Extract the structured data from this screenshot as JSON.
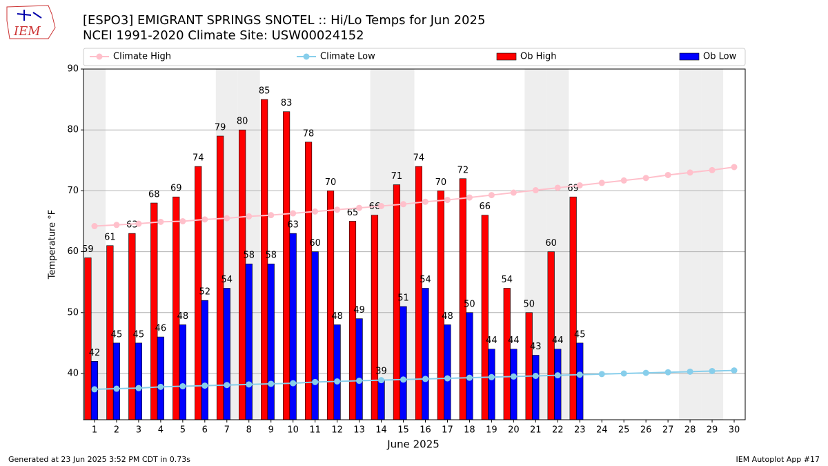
{
  "header": {
    "logo_text": "IEM"
  },
  "chart_data": {
    "type": "bar",
    "title": "[ESPO3] EMIGRANT SPRINGS SNOTEL :: Hi/Lo Temps for Jun 2025",
    "subtitle": "NCEI 1991-2020 Climate Site: USW00024152",
    "x_label": "June 2025",
    "y_label": "Temperature °F",
    "x": [
      1,
      2,
      3,
      4,
      5,
      6,
      7,
      8,
      9,
      10,
      11,
      12,
      13,
      14,
      15,
      16,
      17,
      18,
      19,
      20,
      21,
      22,
      23,
      24,
      25,
      26,
      27,
      28,
      29,
      30
    ],
    "xlim": [
      0.5,
      30.5
    ],
    "xticks": [
      1,
      2,
      3,
      4,
      5,
      6,
      7,
      8,
      9,
      10,
      11,
      12,
      13,
      14,
      15,
      16,
      17,
      18,
      19,
      20,
      21,
      22,
      23,
      24,
      25,
      26,
      27,
      28,
      29,
      30
    ],
    "ylim": [
      32.4,
      90
    ],
    "yticks": [
      40,
      50,
      60,
      70,
      80,
      90
    ],
    "grid": true,
    "shaded_days": [
      1,
      7,
      8,
      14,
      15,
      21,
      22,
      28,
      29
    ],
    "series": [
      {
        "name": "Climate High",
        "type": "line",
        "color": "#ffc0cb",
        "values": [
          64.2,
          64.4,
          64.6,
          64.9,
          65.0,
          65.3,
          65.5,
          65.8,
          66.0,
          66.3,
          66.6,
          66.9,
          67.2,
          67.5,
          67.8,
          68.2,
          68.5,
          68.9,
          69.3,
          69.7,
          70.1,
          70.5,
          70.9,
          71.3,
          71.7,
          72.1,
          72.6,
          73.0,
          73.4,
          73.9
        ]
      },
      {
        "name": "Climate Low",
        "type": "line",
        "color": "#87ceeb",
        "values": [
          37.4,
          37.5,
          37.6,
          37.8,
          37.9,
          38.0,
          38.1,
          38.2,
          38.3,
          38.4,
          38.6,
          38.7,
          38.8,
          38.9,
          39.0,
          39.1,
          39.2,
          39.3,
          39.4,
          39.5,
          39.6,
          39.7,
          39.8,
          39.9,
          40.0,
          40.1,
          40.2,
          40.3,
          40.4,
          40.5
        ]
      },
      {
        "name": "Ob High",
        "type": "bar",
        "color": "#ff0000",
        "values": [
          59,
          61,
          63,
          68,
          69,
          74,
          79,
          80,
          85,
          83,
          78,
          70,
          65,
          66,
          71,
          74,
          70,
          72,
          66,
          54,
          50,
          60,
          69,
          null,
          null,
          null,
          null,
          null,
          null,
          null
        ]
      },
      {
        "name": "Ob Low",
        "type": "bar",
        "color": "#0000ff",
        "values": [
          42,
          45,
          45,
          46,
          48,
          52,
          54,
          58,
          58,
          63,
          60,
          48,
          49,
          39,
          51,
          54,
          48,
          50,
          44,
          44,
          43,
          44,
          45,
          null,
          null,
          null,
          null,
          null,
          null,
          null
        ]
      }
    ],
    "footer_left": "Generated at 23 Jun 2025 3:52 PM CDT in 0.73s",
    "footer_right": "IEM Autoplot App #17"
  }
}
